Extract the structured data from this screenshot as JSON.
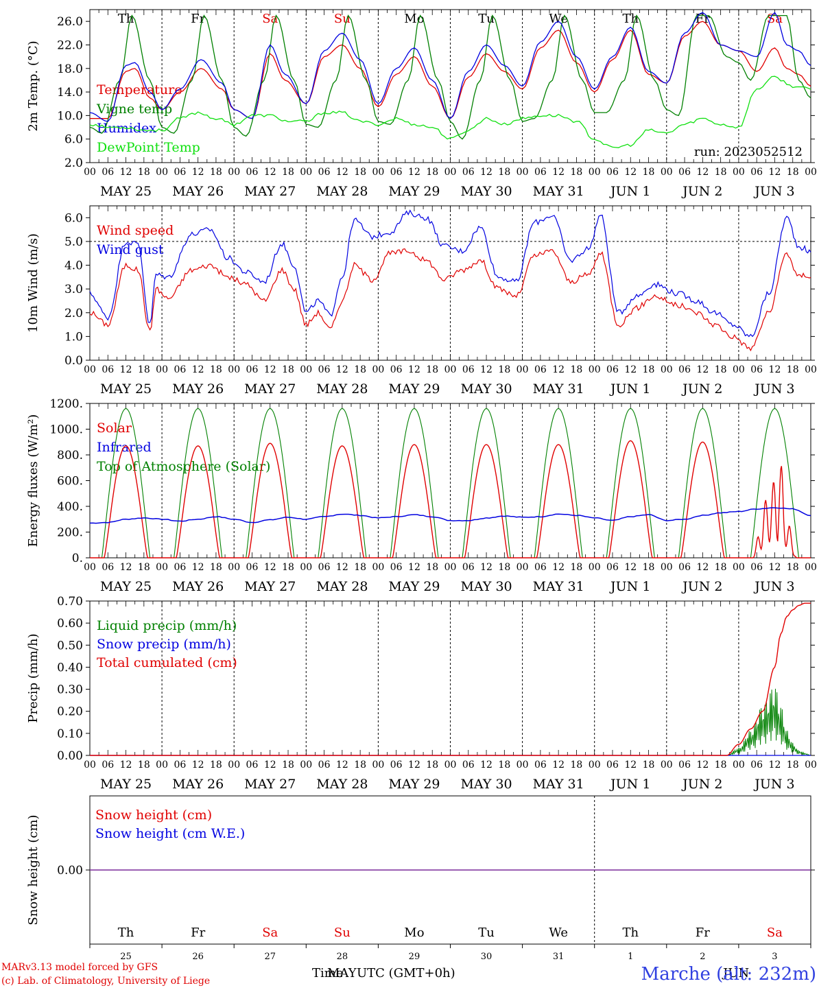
{
  "days": [
    "Th",
    "Fr",
    "Sa",
    "Su",
    "Mo",
    "Tu",
    "We",
    "Th",
    "Fr",
    "Sa"
  ],
  "day_colors": [
    "#000000",
    "#000000",
    "#e00000",
    "#e00000",
    "#000000",
    "#000000",
    "#000000",
    "#000000",
    "#000000",
    "#e00000"
  ],
  "date_labels": [
    "MAY 25",
    "MAY 26",
    "MAY 27",
    "MAY 28",
    "MAY 29",
    "MAY 30",
    "MAY 31",
    "JUN  1",
    "JUN  2",
    "JUN  3"
  ],
  "hour_labels": [
    "00",
    "06",
    "12",
    "18"
  ],
  "final_hour_label": "00",
  "bottom_day_numbers": [
    "25",
    "26",
    "27",
    "28",
    "29",
    "30",
    "31",
    "1",
    "2",
    "3"
  ],
  "footer": {
    "model": "MARv3.13 model forced by GFS",
    "lab": "(c) Lab. of Climatology, University of Liege",
    "xlabel_left": "Time",
    "xlabel_mid": "MAY",
    "xlabel_right": "UTC (GMT+0h)",
    "month2": "JUN",
    "station": "Marche (alt: 232m)"
  },
  "colors": {
    "red": "#e00000",
    "green": "#008000",
    "blue": "#0000e0",
    "lightgreen": "#10e010",
    "purple": "#7a2a9a"
  },
  "chart_data": [
    {
      "type": "line",
      "ylabel": "2m Temp. (°C)",
      "ylim": [
        2.0,
        28.0
      ],
      "yticks": [
        "26.0",
        "22.0",
        "18.0",
        "14.0",
        "10.0",
        "6.0",
        "2.0"
      ],
      "ytick_values": [
        26,
        22,
        18,
        14,
        10,
        6,
        2
      ],
      "annotation": "run: 2023052512",
      "x_unit": "hours since MAY 25 00 UTC",
      "series": [
        {
          "name": "Temperature",
          "color": "red",
          "x": [
            0,
            6,
            12,
            15,
            20,
            24,
            30,
            37,
            44,
            48,
            54,
            60,
            65,
            72,
            78,
            84,
            90,
            96,
            102,
            108,
            114,
            120,
            126,
            132,
            138,
            144,
            150,
            156,
            162,
            168,
            174,
            180,
            186,
            192,
            198,
            204,
            210,
            216,
            222,
            228,
            232,
            236,
            240
          ],
          "y": [
            9.5,
            9.5,
            17.5,
            18.0,
            13.0,
            11.0,
            14.0,
            18.0,
            14.5,
            11.0,
            9.5,
            20.5,
            16.0,
            12.0,
            20.0,
            22.0,
            18.0,
            11.5,
            17.0,
            20.0,
            15.0,
            9.5,
            16.5,
            20.5,
            17.5,
            14.5,
            21.5,
            24.5,
            19.0,
            14.0,
            19.5,
            24.5,
            17.0,
            15.5,
            23.5,
            26.0,
            22.0,
            21.0,
            17.5,
            21.5,
            18.0,
            17.0,
            15.0
          ]
        },
        {
          "name": "Vigne temp",
          "color": "green",
          "x": [
            0,
            4,
            10,
            14,
            20,
            24,
            28,
            34,
            38,
            44,
            48,
            52,
            58,
            62,
            68,
            72,
            76,
            82,
            86,
            92,
            96,
            100,
            106,
            110,
            116,
            120,
            124,
            130,
            134,
            140,
            144,
            148,
            154,
            158,
            164,
            168,
            172,
            178,
            182,
            188,
            192,
            196,
            202,
            206,
            212,
            216,
            220,
            226,
            232,
            236,
            240
          ],
          "y": [
            8.0,
            7.0,
            16.0,
            27.0,
            16.0,
            8.0,
            7.0,
            16.0,
            27.0,
            16.0,
            8.0,
            6.5,
            16.0,
            27.0,
            16.0,
            8.5,
            8.0,
            16.0,
            27.0,
            16.0,
            9.0,
            8.5,
            16.0,
            27.0,
            16.0,
            9.0,
            6.0,
            16.0,
            27.0,
            16.0,
            9.0,
            9.5,
            16.0,
            27.0,
            16.0,
            10.5,
            10.5,
            16.0,
            27.0,
            16.0,
            11.0,
            10.0,
            27.0,
            27.0,
            20.0,
            19.0,
            16.0,
            27.0,
            27.0,
            16.0,
            13.0
          ]
        },
        {
          "name": "Humidex",
          "color": "blue",
          "x": [
            0,
            6,
            12,
            15,
            20,
            24,
            30,
            37,
            44,
            48,
            54,
            60,
            65,
            72,
            78,
            84,
            90,
            96,
            102,
            108,
            114,
            120,
            126,
            132,
            138,
            144,
            150,
            156,
            162,
            168,
            174,
            180,
            186,
            192,
            198,
            204,
            210,
            216,
            222,
            228,
            232,
            236,
            240
          ],
          "y": [
            10.5,
            9.0,
            18.5,
            19.0,
            14.0,
            11.0,
            14.5,
            19.5,
            15.5,
            11.0,
            9.5,
            22.0,
            17.0,
            12.0,
            21.0,
            24.0,
            19.5,
            12.0,
            18.0,
            21.5,
            16.0,
            9.5,
            17.5,
            22.0,
            18.5,
            15.0,
            22.5,
            26.0,
            20.0,
            14.5,
            20.0,
            25.0,
            17.5,
            15.5,
            24.0,
            27.5,
            22.0,
            21.0,
            20.0,
            27.5,
            22.0,
            21.0,
            18.5
          ]
        },
        {
          "name": "DewPoint Temp",
          "color": "lightgreen",
          "x": [
            0,
            6,
            12,
            18,
            24,
            30,
            36,
            42,
            48,
            54,
            60,
            66,
            72,
            78,
            84,
            90,
            96,
            102,
            108,
            114,
            120,
            126,
            132,
            138,
            144,
            150,
            156,
            162,
            168,
            174,
            180,
            186,
            192,
            198,
            204,
            210,
            216,
            222,
            228,
            234,
            240
          ],
          "y": [
            8.5,
            8.0,
            8.0,
            7.5,
            7.5,
            9.5,
            10.5,
            9.5,
            8.5,
            10.0,
            10.0,
            9.0,
            9.0,
            10.5,
            10.5,
            9.0,
            8.5,
            9.5,
            8.5,
            8.0,
            6.0,
            7.5,
            9.5,
            8.5,
            9.5,
            10.0,
            10.0,
            9.0,
            6.0,
            4.5,
            5.0,
            7.5,
            7.0,
            8.5,
            9.5,
            8.5,
            8.0,
            14.5,
            16.5,
            15.0,
            14.5
          ]
        }
      ]
    },
    {
      "type": "line",
      "ylabel": "10m Wind (m/s)",
      "ylim": [
        0.0,
        6.5
      ],
      "yticks": [
        "6.0",
        "5.0",
        "4.0",
        "3.0",
        "2.0",
        "1.0",
        "0.0"
      ],
      "ytick_values": [
        6,
        5,
        4,
        3,
        2,
        1,
        0
      ],
      "reference_line": 5.0,
      "x_unit": "hours since MAY 25 00 UTC",
      "series": [
        {
          "name": "Wind speed",
          "color": "red",
          "x": [
            0,
            6,
            12,
            16,
            20,
            22,
            26,
            34,
            40,
            46,
            52,
            58,
            64,
            68,
            72,
            76,
            80,
            84,
            88,
            94,
            100,
            106,
            112,
            118,
            124,
            130,
            136,
            142,
            148,
            154,
            160,
            166,
            170,
            176,
            182,
            188,
            196,
            202,
            208,
            214,
            220,
            226,
            232,
            236,
            238,
            240
          ],
          "y": [
            2.0,
            1.5,
            4.0,
            3.8,
            1.2,
            3.0,
            2.6,
            3.8,
            4.0,
            3.5,
            3.2,
            2.5,
            3.8,
            3.0,
            1.5,
            2.0,
            1.3,
            2.5,
            4.0,
            3.4,
            4.5,
            4.6,
            4.2,
            3.4,
            3.8,
            4.2,
            3.0,
            2.7,
            4.4,
            4.6,
            3.3,
            3.6,
            4.5,
            1.5,
            2.2,
            2.7,
            2.3,
            2.0,
            1.5,
            1.0,
            0.5,
            2.0,
            4.5,
            3.5,
            3.6,
            3.5
          ]
        },
        {
          "name": "Wind gust",
          "color": "blue",
          "x": [
            0,
            6,
            12,
            16,
            20,
            22,
            26,
            34,
            40,
            46,
            52,
            58,
            64,
            68,
            72,
            76,
            80,
            84,
            88,
            94,
            100,
            106,
            112,
            118,
            124,
            130,
            136,
            142,
            148,
            154,
            160,
            166,
            170,
            176,
            182,
            188,
            196,
            202,
            208,
            214,
            220,
            226,
            232,
            236,
            238,
            240
          ],
          "y": [
            2.8,
            1.8,
            5.0,
            4.9,
            1.5,
            3.6,
            3.5,
            5.3,
            5.5,
            4.3,
            3.7,
            3.3,
            4.9,
            4.0,
            2.0,
            2.5,
            1.9,
            3.5,
            5.9,
            5.2,
            5.4,
            6.2,
            6.0,
            4.8,
            4.6,
            5.6,
            3.5,
            3.3,
            5.8,
            6.1,
            4.2,
            4.7,
            6.1,
            2.0,
            2.7,
            3.2,
            2.8,
            2.5,
            2.0,
            1.5,
            1.0,
            2.8,
            6.0,
            4.8,
            4.7,
            4.5
          ]
        }
      ]
    },
    {
      "type": "line",
      "ylabel": "Energy fluxes (W/m²)",
      "ylim": [
        0,
        1200
      ],
      "yticks": [
        "1200.",
        "1000.",
        "800.",
        "600.",
        "400.",
        "200.",
        "0."
      ],
      "ytick_values": [
        1200,
        1000,
        800,
        600,
        400,
        200,
        0
      ],
      "x_unit": "hours since MAY 25 00 UTC",
      "daily_solar_peaks": [
        870,
        870,
        890,
        870,
        880,
        880,
        880,
        910,
        900,
        660
      ],
      "toa_peak": 1160,
      "series": [
        {
          "name": "Solar",
          "color": "red"
        },
        {
          "name": "Infrared",
          "color": "blue",
          "x": [
            0,
            6,
            12,
            18,
            24,
            30,
            36,
            42,
            48,
            54,
            60,
            66,
            72,
            78,
            84,
            90,
            96,
            102,
            108,
            114,
            120,
            126,
            132,
            138,
            144,
            150,
            156,
            162,
            168,
            174,
            180,
            186,
            192,
            198,
            204,
            210,
            216,
            222,
            228,
            234,
            240
          ],
          "y": [
            270,
            275,
            300,
            310,
            300,
            285,
            300,
            320,
            300,
            275,
            295,
            315,
            300,
            320,
            340,
            330,
            310,
            320,
            335,
            320,
            290,
            290,
            310,
            325,
            315,
            320,
            340,
            330,
            310,
            290,
            320,
            335,
            290,
            300,
            330,
            350,
            360,
            380,
            390,
            380,
            330
          ]
        },
        {
          "name": "Top of Atmosphere (Solar)",
          "color": "green"
        }
      ]
    },
    {
      "type": "line",
      "ylabel": "Precip (mm/h)",
      "ylim": [
        0.0,
        0.7
      ],
      "yticks": [
        "0.70",
        "0.60",
        "0.50",
        "0.40",
        "0.30",
        "0.20",
        "0.10",
        "0.00"
      ],
      "ytick_values": [
        0.7,
        0.6,
        0.5,
        0.4,
        0.3,
        0.2,
        0.1,
        0.0
      ],
      "x_unit": "hours since MAY 25 00 UTC",
      "series": [
        {
          "name": "Liquid precip (mm/h)",
          "color": "green",
          "x": [
            0,
            212,
            216,
            220,
            224,
            228,
            230,
            232,
            234,
            236,
            238,
            240
          ],
          "y": [
            0,
            0,
            0.03,
            0.1,
            0.2,
            0.28,
            0.2,
            0.1,
            0.05,
            0.02,
            0.01,
            0
          ]
        },
        {
          "name": "Snow precip (mm/h)",
          "color": "blue",
          "x": [
            0,
            240
          ],
          "y": [
            0,
            0
          ]
        },
        {
          "name": "Total cumulated (cm)",
          "color": "red",
          "x": [
            0,
            212,
            216,
            220,
            224,
            228,
            230,
            232,
            234,
            236,
            238,
            240
          ],
          "y": [
            0,
            0,
            0.05,
            0.12,
            0.2,
            0.4,
            0.55,
            0.63,
            0.66,
            0.68,
            0.69,
            0.69
          ]
        }
      ]
    },
    {
      "type": "line",
      "ylabel": "Snow height (cm)",
      "ylim": [
        -1,
        1
      ],
      "yticks": [
        "0.00"
      ],
      "ytick_values": [
        0
      ],
      "x_unit": "hours since MAY 25 00 UTC",
      "series": [
        {
          "name": "Snow height (cm)",
          "color": "red",
          "x": [
            0,
            240
          ],
          "y": [
            0,
            0
          ]
        },
        {
          "name": "Snow height (cm W.E.)",
          "color": "blue",
          "x": [
            0,
            240
          ],
          "y": [
            0,
            0
          ]
        }
      ]
    }
  ]
}
